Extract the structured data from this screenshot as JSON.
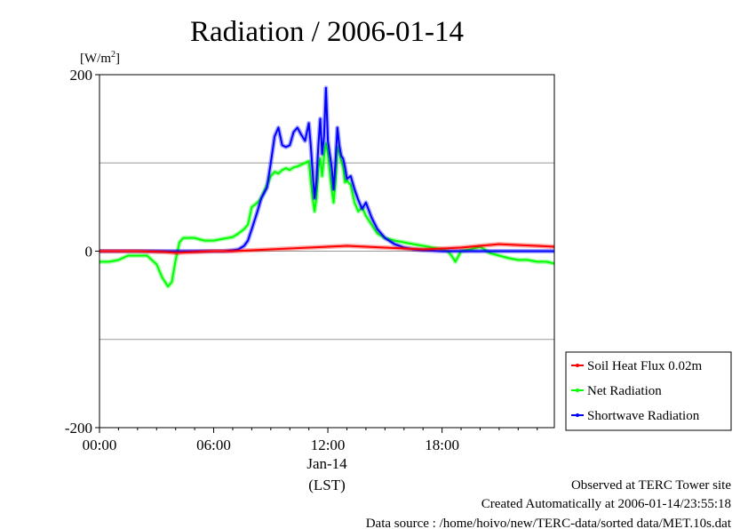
{
  "chart_data": {
    "type": "line",
    "title": "Radiation / 2006-01-14",
    "ylabel": "[W/m²]",
    "ylabel_base": "[W/m",
    "ylabel_sup": "2",
    "ylabel_end": "]",
    "xlabel_date": "Jan-14",
    "xlabel": "(LST)",
    "xlim_hours": [
      0,
      23.9
    ],
    "ylim": [
      -200,
      200
    ],
    "grid": true,
    "legend_position": "right-bottom",
    "y_ticks": [
      {
        "value": 200,
        "label": "200"
      },
      {
        "value": 0,
        "label": "0"
      },
      {
        "value": -200,
        "label": "-200"
      }
    ],
    "y_gridlines": [
      100,
      0,
      -100
    ],
    "x_ticks": [
      {
        "value": 0,
        "label": "00:00"
      },
      {
        "value": 6,
        "label": "06:00"
      },
      {
        "value": 12,
        "label": "12:00"
      },
      {
        "value": 18,
        "label": "18:00"
      }
    ],
    "series": [
      {
        "name": "Soil Heat Flux 0.02m",
        "color": "#ff0000",
        "x": [
          0,
          2,
          3.5,
          4,
          5,
          6,
          7,
          8,
          9,
          10,
          11,
          12,
          13,
          14,
          15,
          16,
          17,
          18,
          19,
          20,
          21,
          22,
          23,
          23.9
        ],
        "values": [
          0,
          0,
          -1,
          -2,
          -1,
          0,
          0,
          1,
          2,
          3,
          4,
          5,
          6,
          5,
          4,
          3,
          2,
          3,
          4,
          6,
          8,
          7,
          6,
          5
        ]
      },
      {
        "name": "Net Radiation",
        "color": "#00ff00",
        "x": [
          0,
          0.5,
          1,
          1.5,
          2,
          2.5,
          3,
          3.3,
          3.6,
          3.8,
          4,
          4.2,
          4.4,
          5,
          5.5,
          6,
          6.5,
          7,
          7.3,
          7.6,
          7.8,
          8,
          8.3,
          8.5,
          8.8,
          9,
          9.2,
          9.4,
          9.6,
          9.8,
          10,
          10.2,
          10.4,
          10.6,
          10.8,
          11,
          11.1,
          11.2,
          11.3,
          11.4,
          11.5,
          11.6,
          11.7,
          11.8,
          11.9,
          12,
          12.1,
          12.2,
          12.3,
          12.4,
          12.5,
          12.6,
          12.7,
          12.8,
          12.9,
          13,
          13.2,
          13.4,
          13.6,
          13.8,
          14,
          14.3,
          14.6,
          15,
          15.5,
          16,
          16.5,
          17,
          17.5,
          18,
          18.3,
          18.5,
          18.7,
          19,
          19.5,
          20,
          20.5,
          21,
          21.5,
          22,
          22.5,
          23,
          23.5,
          23.9
        ],
        "values": [
          -12,
          -12,
          -10,
          -5,
          -5,
          -5,
          -15,
          -30,
          -40,
          -35,
          -10,
          10,
          15,
          15,
          12,
          12,
          14,
          16,
          20,
          25,
          30,
          50,
          55,
          60,
          75,
          85,
          90,
          88,
          92,
          94,
          92,
          95,
          96,
          98,
          100,
          102,
          80,
          60,
          45,
          60,
          95,
          105,
          85,
          108,
          122,
          110,
          90,
          70,
          55,
          78,
          118,
          112,
          102,
          95,
          78,
          80,
          75,
          55,
          45,
          50,
          40,
          30,
          20,
          15,
          12,
          10,
          8,
          6,
          4,
          2,
          0,
          -5,
          -12,
          0,
          2,
          5,
          -2,
          -5,
          -8,
          -10,
          -10,
          -12,
          -12,
          -14
        ]
      },
      {
        "name": "Shortwave Radiation",
        "color": "#0000ff",
        "x": [
          0,
          2,
          4,
          5,
          6,
          6.5,
          7,
          7.3,
          7.6,
          7.8,
          8,
          8.3,
          8.5,
          8.8,
          9,
          9.2,
          9.4,
          9.6,
          9.8,
          10,
          10.2,
          10.4,
          10.6,
          10.8,
          11,
          11.1,
          11.2,
          11.3,
          11.4,
          11.5,
          11.6,
          11.7,
          11.8,
          11.9,
          12,
          12.1,
          12.2,
          12.3,
          12.4,
          12.5,
          12.6,
          12.7,
          12.8,
          12.9,
          13,
          13.2,
          13.4,
          13.6,
          13.8,
          14,
          14.3,
          14.6,
          15,
          15.5,
          16,
          16.5,
          17,
          18,
          18.5,
          18.7,
          19,
          20,
          21,
          22,
          23,
          23.9
        ],
        "values": [
          0,
          0,
          0,
          0,
          0,
          0,
          1,
          2,
          6,
          12,
          25,
          45,
          60,
          72,
          100,
          130,
          140,
          120,
          118,
          120,
          135,
          140,
          132,
          125,
          145,
          120,
          90,
          60,
          80,
          120,
          150,
          110,
          130,
          185,
          125,
          110,
          95,
          70,
          100,
          140,
          120,
          108,
          105,
          95,
          82,
          85,
          70,
          58,
          48,
          55,
          38,
          25,
          15,
          8,
          4,
          2,
          1,
          0,
          0,
          0,
          0,
          0,
          0,
          0,
          0,
          0
        ]
      }
    ]
  },
  "footer": {
    "line1": "Observed at TERC Tower site",
    "line2": "Created Automatically at 2006-01-14/23:55:18",
    "line3": "Data source : /home/hoivo/new/TERC-data/sorted  data/MET.10s.dat"
  }
}
